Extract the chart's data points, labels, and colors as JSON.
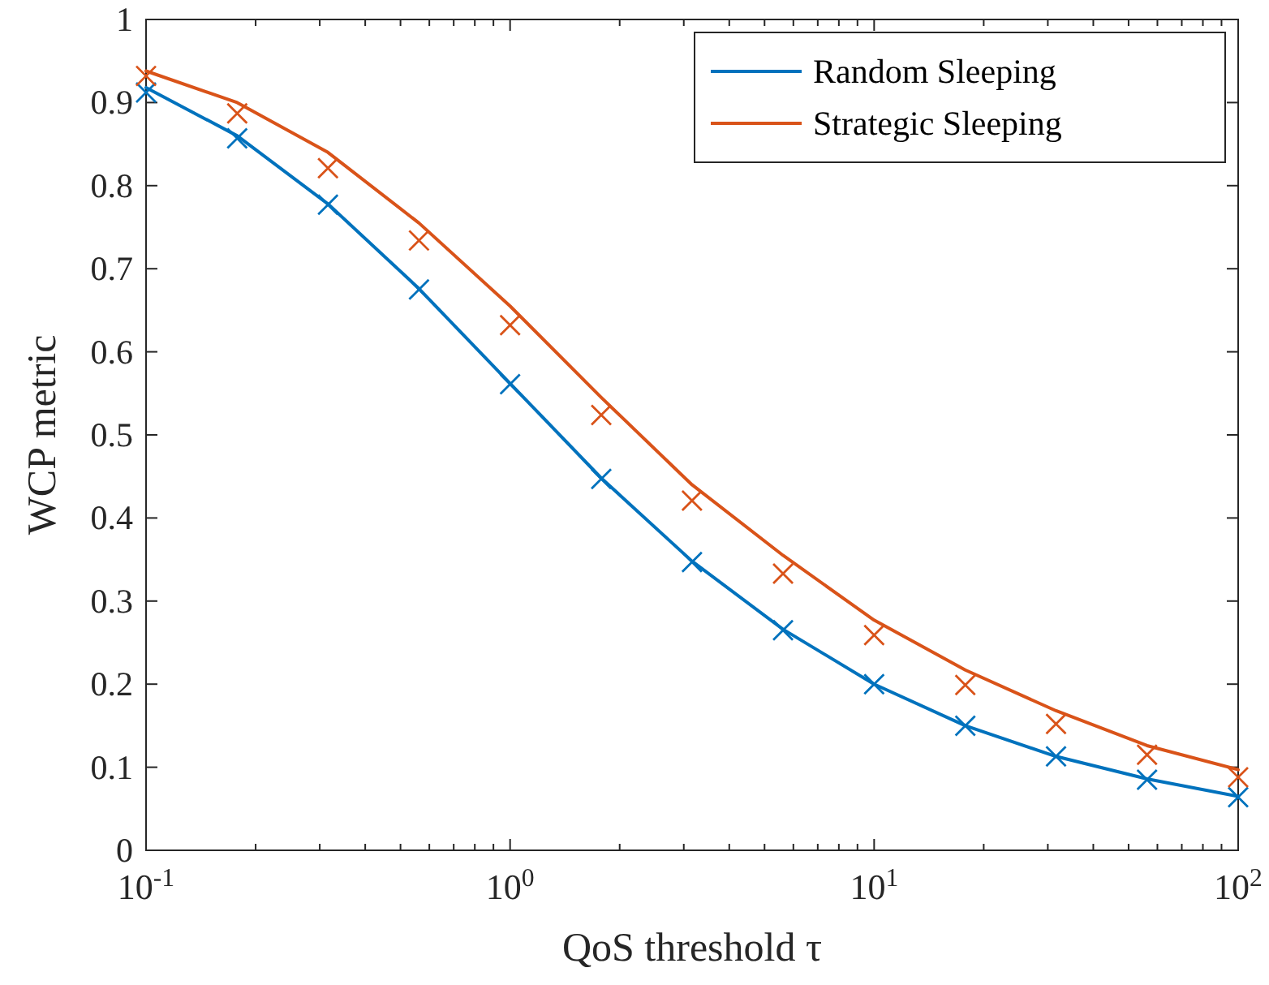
{
  "chart_data": {
    "type": "line",
    "xlabel": "QoS threshold τ",
    "ylabel": "WCP metric",
    "log": "x",
    "grid": false,
    "legend": "top right",
    "marker": "none",
    "line_style": "solid",
    "xlim": [
      0.1,
      100
    ],
    "ylim": [
      0,
      1
    ],
    "xticks": [
      {
        "value": 0.1,
        "label": "10$^{-1}$"
      },
      {
        "value": 0.2,
        "label": null
      },
      {
        "value": 0.3,
        "label": null
      },
      {
        "value": 0.4,
        "label": null
      },
      {
        "value": 0.5,
        "label": null
      },
      {
        "value": 0.6,
        "label": null
      },
      {
        "value": 0.7,
        "label": null
      },
      {
        "value": 0.8,
        "label": null
      },
      {
        "value": 0.9,
        "label": null
      },
      {
        "value": 1,
        "label": "10$^{0}$"
      },
      {
        "value": 2,
        "label": null
      },
      {
        "value": 3,
        "label": null
      },
      {
        "value": 4,
        "label": null
      },
      {
        "value": 5,
        "label": null
      },
      {
        "value": 6,
        "label": null
      },
      {
        "value": 7,
        "label": null
      },
      {
        "value": 8,
        "label": null
      },
      {
        "value": 9,
        "label": null
      },
      {
        "value": 10,
        "label": "10$^{1}$"
      },
      {
        "value": 20,
        "label": null
      },
      {
        "value": 30,
        "label": null
      },
      {
        "value": 40,
        "label": null
      },
      {
        "value": 50,
        "label": null
      },
      {
        "value": 60,
        "label": null
      },
      {
        "value": 70,
        "label": null
      },
      {
        "value": 80,
        "label": null
      },
      {
        "value": 90,
        "label": null
      },
      {
        "value": 100,
        "label": "10$^{2}$"
      }
    ],
    "yticks": [
      {
        "value": 0,
        "label": "0"
      },
      {
        "value": 0.1,
        "label": "0.1"
      },
      {
        "value": 0.2,
        "label": "0.2"
      },
      {
        "value": 0.3,
        "label": "0.3"
      },
      {
        "value": 0.4,
        "label": "0.4"
      },
      {
        "value": 0.5,
        "label": "0.5"
      },
      {
        "value": 0.6,
        "label": "0.6"
      },
      {
        "value": 0.7,
        "label": "0.7"
      },
      {
        "value": 0.8,
        "label": "0.8"
      },
      {
        "value": 0.9,
        "label": "0.9"
      },
      {
        "value": 1,
        "label": "1"
      }
    ],
    "series": [
      {
        "name": "Random Sleeping",
        "color": "#0072bd",
        "x": [
          0.1,
          0.178,
          0.316,
          0.562,
          1,
          1.78,
          3.16,
          5.62,
          10,
          17.8,
          31.6,
          56.2,
          100
        ],
        "values": [
          0.918,
          0.86,
          0.778,
          0.676,
          0.562,
          0.448,
          0.348,
          0.266,
          0.2,
          0.15,
          0.113,
          0.086,
          0.065
        ]
      },
      {
        "name": "Strategic Sleeping",
        "color": "#d95319",
        "x": [
          0.1,
          0.178,
          0.316,
          0.562,
          1,
          1.78,
          3.16,
          5.62,
          10,
          17.8,
          31.6,
          56.2,
          100
        ],
        "values": [
          0.938,
          0.9,
          0.84,
          0.755,
          0.655,
          0.545,
          0.44,
          0.355,
          0.277,
          0.217,
          0.168,
          0.126,
          0.097
        ]
      },
      {
        "type": "scatter",
        "marker": "cross",
        "color": "#0072bd",
        "x": [
          0.1,
          0.178,
          0.316,
          0.562,
          1,
          1.78,
          3.16,
          5.62,
          10,
          17.8,
          31.6,
          56.2,
          100
        ],
        "values": [
          0.912,
          0.857,
          0.777,
          0.675,
          0.561,
          0.447,
          0.347,
          0.265,
          0.2,
          0.15,
          0.113,
          0.085,
          0.064
        ]
      },
      {
        "type": "scatter",
        "marker": "cross",
        "color": "#d95319",
        "x": [
          0.1,
          0.178,
          0.316,
          0.562,
          1,
          1.78,
          3.16,
          5.62,
          10,
          17.8,
          31.6,
          56.2,
          100
        ],
        "values": [
          0.932,
          0.887,
          0.821,
          0.734,
          0.632,
          0.524,
          0.421,
          0.333,
          0.259,
          0.199,
          0.152,
          0.115,
          0.088
        ]
      }
    ]
  }
}
